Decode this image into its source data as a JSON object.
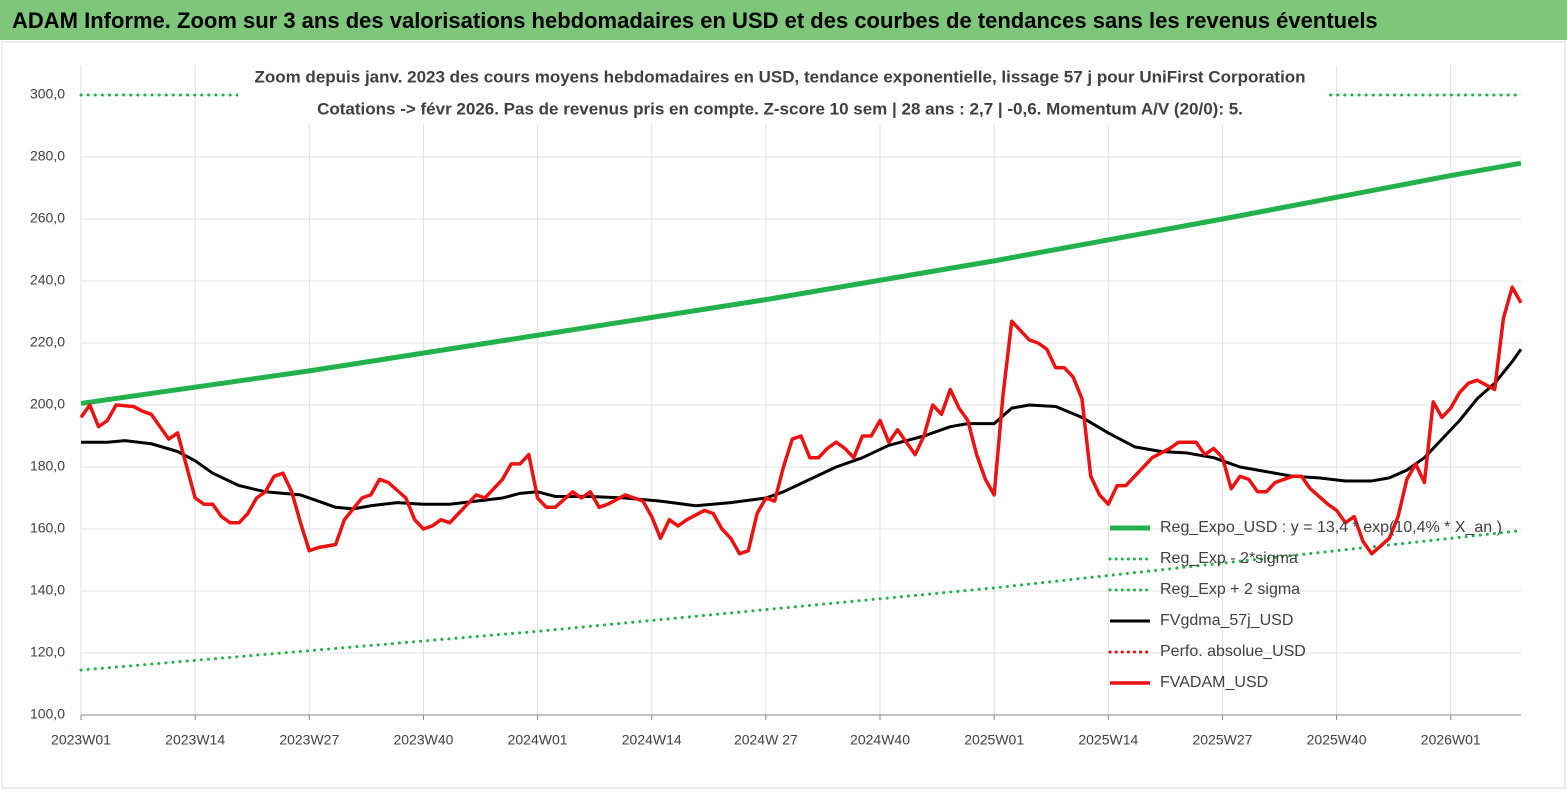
{
  "chart_data": {
    "type": "line",
    "title": "ADAM Informe. Zoom sur 3 ans des valorisations hebdomadaires en USD et des courbes de tendances sans les revenus éventuels",
    "subtitle": [
      "Zoom depuis janv. 2023 des cours moyens hebdomadaires en USD, tendance exponentielle, lissage 57 j pour UniFirst Corporation",
      "Cotations -> févr 2026.  Pas de revenus pris en compte. Z-score 10 sem  | 28 ans : 2,7 | -0,6. Momentum A/V (20/0): 5."
    ],
    "xlim": [
      0,
      164
    ],
    "xticks": [
      {
        "value": 0,
        "label": "2023W01"
      },
      {
        "value": 13,
        "label": "2023W14"
      },
      {
        "value": 26,
        "label": "2023W27"
      },
      {
        "value": 39,
        "label": "2023W40"
      },
      {
        "value": 52,
        "label": "2024W01"
      },
      {
        "value": 65,
        "label": "2024W14"
      },
      {
        "value": 78,
        "label": "2024W 27"
      },
      {
        "value": 91,
        "label": "2024W40"
      },
      {
        "value": 104,
        "label": "2025W01"
      },
      {
        "value": 117,
        "label": "2025W14"
      },
      {
        "value": 130,
        "label": "2025W27"
      },
      {
        "value": 143,
        "label": "2025W40"
      },
      {
        "value": 156,
        "label": "2026W01"
      }
    ],
    "ylim": [
      100,
      300
    ],
    "yticks": [
      {
        "value": 100,
        "label": "100,0"
      },
      {
        "value": 120,
        "label": "120,0"
      },
      {
        "value": 140,
        "label": "140,0"
      },
      {
        "value": 160,
        "label": "160,0"
      },
      {
        "value": 180,
        "label": "180,0"
      },
      {
        "value": 200,
        "label": "200,0"
      },
      {
        "value": 220,
        "label": "220,0"
      },
      {
        "value": 240,
        "label": "240,0"
      },
      {
        "value": 260,
        "label": "260,0"
      },
      {
        "value": 280,
        "label": "280,0"
      },
      {
        "value": 300,
        "label": "300,0"
      }
    ],
    "grid": true,
    "legend": "bottom-right",
    "series": [
      {
        "name": "Reg_Expo_USD : y = 13,4 * exp(10,4% * X_an )",
        "color": "#22b14c",
        "style": "solid",
        "width": 5,
        "x": [
          0,
          26,
          52,
          78,
          104,
          130,
          156,
          164
        ],
        "values": [
          200.5,
          211,
          222.5,
          234,
          246.5,
          260,
          274,
          278
        ]
      },
      {
        "name": "Reg_Exp - 2*sigma",
        "color": "#22b14c",
        "style": "dotted",
        "width": 3,
        "x": [
          0,
          52,
          104,
          156,
          164
        ],
        "values": [
          114.5,
          127,
          141,
          157,
          159.5
        ]
      },
      {
        "name": "Reg_Exp + 2 sigma",
        "color": "#22b14c",
        "style": "dotted",
        "width": 3,
        "x": [
          0,
          164
        ],
        "values": [
          300,
          300
        ]
      },
      {
        "name": "FVgdma_57j_USD",
        "color": "#000000",
        "style": "solid",
        "width": 3,
        "x": [
          0,
          3,
          5,
          8,
          11,
          13,
          15,
          18,
          21,
          25,
          27,
          29,
          31,
          33,
          36,
          39,
          42,
          45,
          48,
          50,
          52,
          54,
          58,
          62,
          66,
          70,
          74,
          78,
          80,
          83,
          86,
          89,
          92,
          96,
          99,
          101,
          104,
          106,
          108,
          111,
          114,
          117,
          120,
          123,
          126,
          129,
          132,
          135,
          138,
          141,
          144,
          147,
          149,
          151,
          153,
          155,
          157,
          159,
          161,
          163,
          164
        ],
        "values": [
          188,
          188,
          188.5,
          187.5,
          185,
          182,
          178,
          174,
          172,
          171,
          169,
          167,
          166.5,
          167.5,
          168.5,
          168,
          168,
          169,
          170,
          171.5,
          172,
          170.5,
          170.5,
          170,
          169,
          167.5,
          168.5,
          170,
          172,
          176,
          180,
          183,
          187,
          190,
          193,
          194,
          194,
          199,
          200,
          199.5,
          196,
          191,
          186.5,
          185,
          184.5,
          183,
          180,
          178.5,
          177,
          176.5,
          175.5,
          175.5,
          176.5,
          179,
          183,
          189,
          195,
          202,
          207,
          214,
          218
        ]
      },
      {
        "name": "Perfo. absolue_USD",
        "color": "#ff0000",
        "style": "dotted",
        "width": 3,
        "x": [],
        "values": []
      },
      {
        "name": "FVADAM_USD",
        "color": "#ee1111",
        "style": "solid",
        "width": 3.5,
        "x": [
          0,
          1,
          2,
          3,
          4,
          6,
          7,
          8,
          9,
          10,
          11,
          13,
          14,
          15,
          16,
          17,
          18,
          19,
          20,
          21,
          22,
          23,
          24,
          25,
          26,
          27,
          29,
          30,
          32,
          33,
          34,
          35,
          37,
          38,
          39,
          40,
          41,
          42,
          43,
          44,
          45,
          46,
          48,
          49,
          50,
          51,
          52,
          53,
          54,
          56,
          57,
          58,
          59,
          60,
          62,
          64,
          65,
          66,
          67,
          68,
          69,
          71,
          72,
          73,
          74,
          75,
          76,
          77,
          78,
          79,
          80,
          81,
          82,
          83,
          84,
          85,
          86,
          87,
          88,
          89,
          90,
          91,
          92,
          93,
          94,
          95,
          96,
          97,
          98,
          99,
          100,
          101,
          102,
          103,
          104,
          105,
          106,
          108,
          109,
          110,
          111,
          112,
          113,
          114,
          115,
          116,
          117,
          118,
          119,
          121,
          122,
          124,
          125,
          126,
          127,
          128,
          129,
          130,
          131,
          132,
          133,
          134,
          135,
          136,
          138,
          139,
          140,
          142,
          143,
          144,
          145,
          146,
          147,
          149,
          150,
          151,
          152,
          153,
          154,
          155,
          156,
          157,
          158,
          159,
          161,
          162,
          163,
          164
        ],
        "values": [
          196,
          200,
          193,
          195,
          200,
          199.5,
          198,
          197,
          193,
          189,
          191,
          170,
          168,
          168,
          164,
          162,
          162,
          165,
          170,
          172,
          177,
          178,
          172,
          162,
          153,
          154,
          155,
          163,
          170,
          171,
          176,
          175,
          170,
          163,
          160,
          161,
          163,
          162,
          165,
          168,
          171,
          170,
          176,
          181,
          181,
          184,
          170,
          167,
          167,
          172,
          170,
          172,
          167,
          168,
          171,
          169,
          164,
          157,
          163,
          161,
          163,
          166,
          165,
          160,
          157,
          152,
          153,
          165,
          170,
          169,
          180,
          189,
          190,
          183,
          183,
          186,
          188,
          186,
          183,
          190,
          190,
          195,
          188,
          192,
          188,
          184,
          190,
          200,
          197,
          205,
          199,
          195,
          184,
          176,
          171,
          203,
          227,
          221,
          220,
          218,
          212,
          212,
          209,
          202,
          177,
          171,
          168,
          174,
          174,
          180,
          183,
          186,
          188,
          188,
          188,
          184,
          186,
          183,
          173,
          177,
          176,
          172,
          172,
          175,
          177,
          177,
          173,
          168,
          166,
          162,
          164,
          156,
          152,
          157,
          164,
          176,
          181,
          175,
          201,
          196,
          199,
          204,
          207,
          208,
          205,
          228,
          238,
          233
        ]
      }
    ]
  }
}
